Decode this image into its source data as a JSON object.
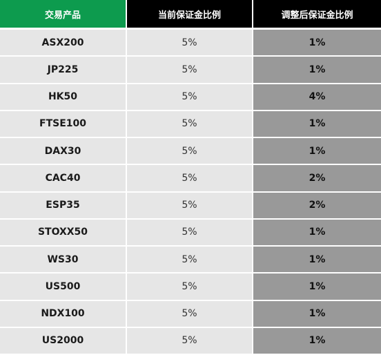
{
  "table": {
    "headers": {
      "product": "交易产品",
      "current": "当前保证金比例",
      "adjusted": "调整后保证金比例"
    },
    "rows": [
      {
        "product": "ASX200",
        "current": "5%",
        "adjusted": "1%"
      },
      {
        "product": "JP225",
        "current": "5%",
        "adjusted": "1%"
      },
      {
        "product": "HK50",
        "current": "5%",
        "adjusted": "4%"
      },
      {
        "product": "FTSE100",
        "current": "5%",
        "adjusted": "1%"
      },
      {
        "product": "DAX30",
        "current": "5%",
        "adjusted": "1%"
      },
      {
        "product": "CAC40",
        "current": "5%",
        "adjusted": "2%"
      },
      {
        "product": "ESP35",
        "current": "5%",
        "adjusted": "2%"
      },
      {
        "product": "STOXX50",
        "current": "5%",
        "adjusted": "1%"
      },
      {
        "product": "WS30",
        "current": "5%",
        "adjusted": "1%"
      },
      {
        "product": "US500",
        "current": "5%",
        "adjusted": "1%"
      },
      {
        "product": "NDX100",
        "current": "5%",
        "adjusted": "1%"
      },
      {
        "product": "US2000",
        "current": "5%",
        "adjusted": "1%"
      }
    ]
  },
  "colors": {
    "product_header": "#0d9b4e",
    "other_headers": "#000000",
    "light_cell": "#e6e6e6",
    "adjusted_cell": "#999999"
  }
}
